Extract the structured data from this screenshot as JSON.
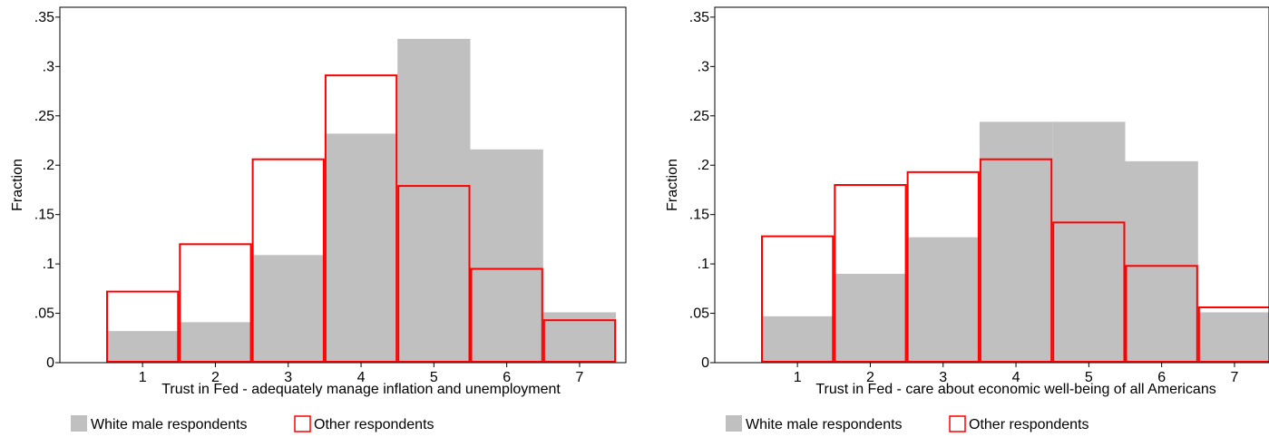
{
  "chart_data": [
    {
      "type": "bar",
      "title": "",
      "xlabel": "Trust in Fed - adequately manage inflation and unemployment",
      "ylabel": "Fraction",
      "categories": [
        "1",
        "2",
        "3",
        "4",
        "5",
        "6",
        "7"
      ],
      "yticks": [
        "0",
        ".05",
        ".1",
        ".15",
        ".2",
        ".25",
        ".3",
        ".35"
      ],
      "ylim": [
        0,
        0.36
      ],
      "grid": false,
      "legend_position": "bottom",
      "series": [
        {
          "name": "White male respondents",
          "style": "filled",
          "color": "#c0c0c0",
          "values": [
            0.032,
            0.041,
            0.109,
            0.232,
            0.328,
            0.216,
            0.051
          ]
        },
        {
          "name": "Other respondents",
          "style": "outline",
          "color": "#ff0000",
          "values": [
            0.072,
            0.12,
            0.206,
            0.291,
            0.179,
            0.095,
            0.043
          ]
        }
      ]
    },
    {
      "type": "bar",
      "title": "",
      "xlabel": "Trust in Fed - care about economic well-being of all Americans",
      "ylabel": "Fraction",
      "categories": [
        "1",
        "2",
        "3",
        "4",
        "5",
        "6",
        "7"
      ],
      "yticks": [
        "0",
        ".05",
        ".1",
        ".15",
        ".2",
        ".25",
        ".3",
        ".35"
      ],
      "ylim": [
        0,
        0.36
      ],
      "grid": false,
      "legend_position": "bottom",
      "series": [
        {
          "name": "White male respondents",
          "style": "filled",
          "color": "#c0c0c0",
          "values": [
            0.047,
            0.09,
            0.127,
            0.244,
            0.244,
            0.204,
            0.051
          ]
        },
        {
          "name": "Other respondents",
          "style": "outline",
          "color": "#ff0000",
          "values": [
            0.128,
            0.18,
            0.193,
            0.206,
            0.142,
            0.098,
            0.056
          ]
        }
      ]
    }
  ]
}
